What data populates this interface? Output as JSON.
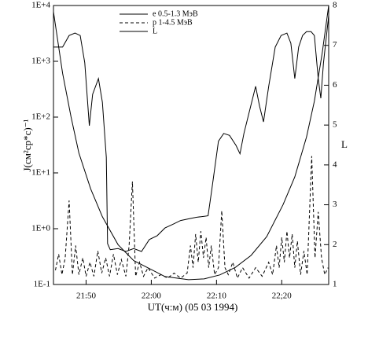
{
  "chart_data": {
    "type": "line",
    "x_label": "UT(ч:м) (05 03 1994)",
    "y_label": "J(см²ср*с)⁻¹",
    "y2_label": "L",
    "xlim": [
      1305,
      1347.2
    ],
    "xticks": [
      {
        "value": 1310,
        "label": "21:50"
      },
      {
        "value": 1320,
        "label": "22:00"
      },
      {
        "value": 1330,
        "label": "22:10"
      },
      {
        "value": 1340,
        "label": "22;20"
      }
    ],
    "ylim": [
      0.1,
      10000
    ],
    "yscale": "log",
    "yticks": [
      {
        "value": 0.1,
        "label": "1E-1"
      },
      {
        "value": 1,
        "label": "1E+0"
      },
      {
        "value": 10,
        "label": "1E+1"
      },
      {
        "value": 100,
        "label": "1E+2"
      },
      {
        "value": 1000,
        "label": "1E+3"
      },
      {
        "value": 10000,
        "label": "1E+4"
      }
    ],
    "y2lim": [
      1,
      8
    ],
    "y2ticks": [
      1,
      2,
      3,
      4,
      5,
      6,
      7,
      8
    ],
    "legend": "top",
    "series": [
      {
        "name": "e 0.5-1.3 МэВ",
        "color": "#000000",
        "linestyle": "solid",
        "x": [
          1305,
          1306.4,
          1307.4,
          1308.3,
          1309.1,
          1309.8,
          1310.5,
          1311,
          1311.9,
          1312.5,
          1313.1,
          1313.3,
          1313.7,
          1314.9,
          1316.1,
          1317.3,
          1318.5,
          1319.7,
          1320.9,
          1322.1,
          1323.3,
          1324.5,
          1325.7,
          1326.9,
          1328.7,
          1329.3,
          1330.3,
          1331.1,
          1332,
          1333,
          1333.6,
          1334.2,
          1335.1,
          1336,
          1336.6,
          1337.2,
          1338,
          1339,
          1339.9,
          1340.8,
          1341.4,
          1342,
          1342.6,
          1343.2,
          1343.8,
          1344.5,
          1345,
          1345.6,
          1346,
          1346.4,
          1347.2
        ],
        "values": [
          1800,
          1800,
          2900,
          3200,
          2900,
          940,
          70,
          256,
          490,
          185,
          19,
          0.54,
          0.42,
          0.44,
          0.39,
          0.44,
          0.39,
          0.64,
          0.75,
          1.03,
          1.2,
          1.4,
          1.5,
          1.6,
          1.7,
          5.2,
          37,
          51,
          47,
          31,
          22,
          51,
          134,
          355,
          157,
          82,
          355,
          1800,
          2900,
          3200,
          2100,
          490,
          1800,
          2900,
          3400,
          3400,
          2900,
          490,
          218,
          940,
          6600
        ]
      },
      {
        "name": "p 1-4.5 МэВ",
        "color": "#000000",
        "linestyle": "dashed",
        "x": [
          1305.3,
          1305.8,
          1306.3,
          1306.8,
          1307.4,
          1307.9,
          1308.4,
          1308.9,
          1309.5,
          1310,
          1310.6,
          1311.2,
          1311.8,
          1312.4,
          1313,
          1313.6,
          1314.2,
          1314.8,
          1315.4,
          1316.1,
          1316.6,
          1317.1,
          1317.6,
          1318.2,
          1318.8,
          1319.5,
          1320.5,
          1321.5,
          1322.5,
          1323.5,
          1324.5,
          1325.5,
          1326,
          1326.4,
          1326.8,
          1327.2,
          1327.6,
          1328,
          1328.4,
          1328.8,
          1329.2,
          1329.7,
          1330.3,
          1330.8,
          1331.3,
          1331.8,
          1332.5,
          1333.2,
          1334,
          1335,
          1336,
          1337,
          1338,
          1338.6,
          1339.2,
          1339.6,
          1340,
          1340.4,
          1340.8,
          1341.2,
          1341.6,
          1342,
          1342.4,
          1342.9,
          1343.4,
          1343.9,
          1344.6,
          1345.1,
          1345.6,
          1346.1,
          1346.6,
          1347.1
        ],
        "values": [
          0.18,
          0.35,
          0.15,
          0.3,
          3.2,
          0.15,
          0.5,
          0.15,
          0.3,
          0.14,
          0.25,
          0.14,
          0.4,
          0.16,
          0.3,
          0.14,
          0.35,
          0.15,
          0.28,
          0.14,
          0.5,
          7,
          0.14,
          0.25,
          0.14,
          0.2,
          0.13,
          0.15,
          0.13,
          0.16,
          0.13,
          0.16,
          0.5,
          0.2,
          0.8,
          0.25,
          0.9,
          0.3,
          0.7,
          0.2,
          0.5,
          0.15,
          0.2,
          2.1,
          0.2,
          0.15,
          0.25,
          0.13,
          0.2,
          0.13,
          0.2,
          0.14,
          0.25,
          0.15,
          0.5,
          0.2,
          0.7,
          0.25,
          0.9,
          0.3,
          0.8,
          0.2,
          0.6,
          0.15,
          0.4,
          0.15,
          20,
          0.3,
          2,
          0.3,
          0.15,
          0.2
        ]
      },
      {
        "name": "L",
        "color": "#000000",
        "linestyle": "solid",
        "axis": "y2",
        "x": [
          1305,
          1306.4,
          1307.7,
          1308.9,
          1310.7,
          1312.5,
          1314.9,
          1317.3,
          1319.7,
          1322.1,
          1325.7,
          1328.1,
          1330.5,
          1332.9,
          1335.3,
          1337.7,
          1340.2,
          1342,
          1343.8,
          1345,
          1346.2,
          1347.2
        ],
        "values": [
          7.84,
          6.3,
          5.2,
          4.3,
          3.4,
          2.7,
          2.0,
          1.6,
          1.4,
          1.2,
          1.12,
          1.14,
          1.24,
          1.43,
          1.73,
          2.2,
          3.0,
          3.7,
          4.7,
          5.6,
          6.8,
          8
        ]
      }
    ]
  }
}
